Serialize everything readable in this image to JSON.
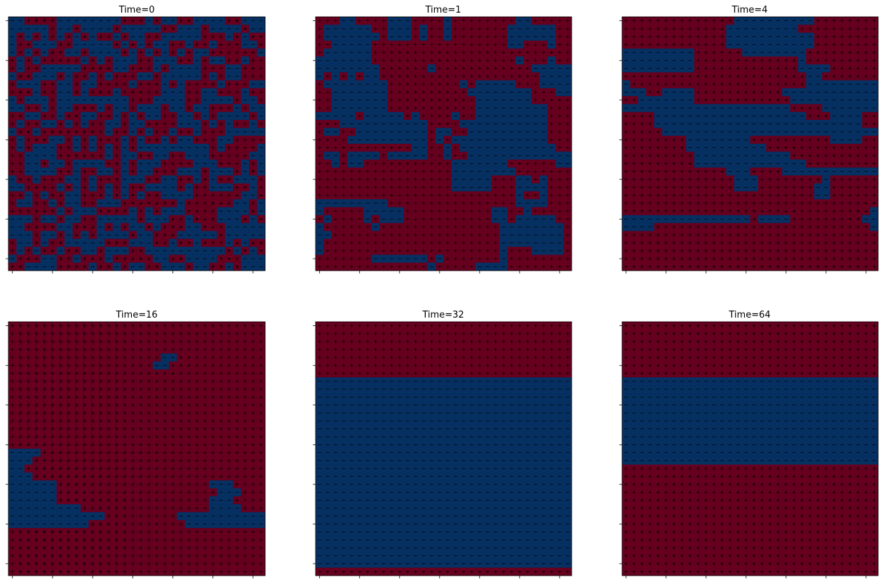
{
  "chart_data": {
    "type": "heatmap",
    "grid_size": 32,
    "colors": {
      "up": "#67001f",
      "down": "#053061"
    },
    "markers": {
      "up": "+",
      "down": "-"
    },
    "tick_labels_shown": false,
    "panels": [
      {
        "title": "Time=0",
        "rows": [
          "00111100000000111010011000011000",
          "00000100100001000001100010000100",
          "01010101010110100110000011101011",
          "01100011000001010100110110111001",
          "01010110010000101010101001111110",
          "10101111101010001100011010011011",
          "10110000011110011101000011100111",
          "01100010110101110010000010100111",
          "10001100100111101110101111011100",
          "11101100101110111110001100111011",
          "01000100000000011100001100001001",
          "00110100111010010001001001110100",
          "11001101100110101001100101000010",
          "10110010101100100111100010101101",
          "01101111111101101011011011100000",
          "10111001010111010110100111001111",
          "10100011010101010000000001011110",
          "11000011111101001100110001111100",
          "11001001000011010001111000111010",
          "11000011011001010011100010001010",
          "01101110010111000110011010110001",
          "00111101010101011000010110001101",
          "11010110011101010110000111111001",
          "10011010011000111111101111110010",
          "11111101000111101010001111000010",
          "00010010011000001000110111000101",
          "00111100111010100101110011100000",
          "00010010101000010011100000100000",
          "10010110000011100011011011101011",
          "10101101100100011000000000010101",
          "01110011011101111100110000111000",
          "11000011110110100110001001101000"
        ]
      },
      {
        "title": "Time=1",
        "rows": [
          "11100111100011110111111110011111",
          "10000001100010110111111100000011",
          "10000000100010110111111100000011",
          "11000001111111111111111100111011",
          "10000001111111111111111111111111",
          "00000001111111111111111110111011",
          "00000000111111011111111111100000",
          "01010100111111111111111111110000",
          "10000000011111111101000001110000",
          "11000000011111111110000000011100",
          "11000000011111111111000000011111",
          "11000000011111111111000000000111",
          "00000100000101111011000000000111",
          "11100000000000111100000000000111",
          "10011000000000100110000000000111",
          "11110000000000101000000000000111",
          "11111111111100110100000000000011",
          "10010000100000110110000000000000",
          "11010011111111111000000011111100",
          "11111111111111111000000001111111",
          "11111111111111111000001110010111",
          "11111111111111111000001110000111",
          "11111111111111111111111110110111",
          "00000000011111111111111110000111",
          "01111100000111111111110011011111",
          "10111101000111111111110010000011",
          "01111110111111111111111000000001",
          "00111111111111111111111000000001",
          "01111111111111111111111000000001",
          "01111111111111111111111011100001",
          "11111110000000101111111011111111",
          "11111111111111011111000011111111"
        ]
      },
      {
        "title": "Time=4",
        "rows": [
          "11111111111111000000000011111111",
          "11111111111110000000001111111111",
          "11111111111110000000000011111111",
          "11111111111110000000000011111111",
          "00000000011111100000000111111111",
          "00000000011111111111110111111111",
          "00000000011111111111110000111111",
          "11111111111111111111111001111111",
          "01111111111111111111111000000000",
          "00011000011111111111000000000000",
          "11000000011111111111100000000000",
          "00000000000000000000011110000000",
          "11110000000000000000000111000011",
          "11110000000000000000000000000011",
          "11111000000000000000000000000000",
          "11111111000000001111111111000011",
          "11111111000000000011111111111111",
          "11111111100000000000011111111111",
          "11111111100000000000000111111111",
          "11111111111110001111000000000000",
          "11111111111111000111111110111111",
          "11111111111111000111111100111111",
          "11111111111111111111111100111111",
          "11111111111111111111111111111111",
          "11111111111111111111111111111110",
          "00000000000000001000011111111100",
          "00001111111111111111111111111110",
          "11111111111111111111111111111111",
          "11111111111111111111111111111111",
          "11111111111111111111111111111111",
          "11111111111111111111111111111111",
          "11111111111111111111111111111111"
        ]
      },
      {
        "title": "Time=16",
        "rows": [
          "11111111111111111111111111111111",
          "11111111111111111111111111111111",
          "11111111111111111111111111111111",
          "11111111111111111111111111111111",
          "11111111111111111110011111111111",
          "11111111111111111100111111111111",
          "11111111111111111111111111111111",
          "11111111111111111111111111111111",
          "11111111111111111111111111111111",
          "11111111111111111111111111111111",
          "11111111111111111111111111111111",
          "11111111111111111111111111111111",
          "11111111111111111111111111111111",
          "11111111111111111111111111111111",
          "11111111111111111111111111111111",
          "11111111111111111111111111111111",
          "00001111111111111111111111111111",
          "00011111111111111111111111111111",
          "00111111111111111111111111111111",
          "00011111111111111111111111111111",
          "00000011111111111111111110001111",
          "00000011111111111111111111000111",
          "00000011111111111111111110001111",
          "00000000011111111111111110000111",
          "00000000000011111111100000000000",
          "00000000001111111111110000000000",
          "11111111111111111111111111111111",
          "11111111111111111111111111111111",
          "11111111111111111111111111111111",
          "11111111111111111111111111111111",
          "11111111111111111111111111111111",
          "11111111111111111111111111111111"
        ]
      },
      {
        "title": "Time=32",
        "rows": [
          "11111111111111111111111111111111",
          "11111111111111111111111111111111",
          "11111111111111111111111111111111",
          "11111111111111111111111111111111",
          "11111111111111111111111111111111",
          "11111111111111111111111111111111",
          "11111111111111111111111111111111",
          "00000000000000000000000000000000",
          "00000000000000000000000000000000",
          "00000000000000000000000000000000",
          "00000000000000000000000000000000",
          "00000000000000000000000000000000",
          "00000000000000000000000000000000",
          "00000000000000000000000000000000",
          "00000000000000000000000000000000",
          "00000000000000000000000000000000",
          "00000000000000000000000000000000",
          "00000000000000000000000000000000",
          "00000000000000000000000000000000",
          "00000000000000000000000000000000",
          "00000000000000000000000000000000",
          "00000000000000000000000000000000",
          "00000000000000000000000000000000",
          "00000000000000000000000000000000",
          "00000000000000000000000000000000",
          "00000000000000000000000000000000",
          "00000000000000000000000000000000",
          "00000000000000000000000000000000",
          "00000000000000000000000000000000",
          "00000000000000000000000000000000",
          "00000000000000000000000000000000",
          "11111111111111111111111111111111"
        ]
      },
      {
        "title": "Time=64",
        "rows": [
          "11111111111111111111111111111111",
          "11111111111111111111111111111111",
          "11111111111111111111111111111111",
          "11111111111111111111111111111111",
          "11111111111111111111111111111111",
          "11111111111111111111111111111111",
          "11111111111111111111111111111111",
          "00000000000000000000000000000000",
          "00000000000000000000000000000000",
          "00000000000000000000000000000000",
          "00000000000000000000000000000000",
          "00000000000000000000000000000000",
          "00000000000000000000000000000000",
          "00000000000000000000000000000000",
          "00000000000000000000000000000000",
          "00000000000000000000000000000000",
          "00000000000000000000000000000000",
          "00000000000000000000000000000000",
          "11111111111111111111111111111111",
          "11111111111111111111111111111111",
          "11111111111111111111111111111111",
          "11111111111111111111111111111111",
          "11111111111111111111111111111111",
          "11111111111111111111111111111111",
          "11111111111111111111111111111111",
          "11111111111111111111111111111111",
          "11111111111111111111111111111111",
          "11111111111111111111111111111111",
          "11111111111111111111111111111111",
          "11111111111111111111111111111111",
          "11111111111111111111111111111111",
          "11111111111111111111111111111111"
        ]
      }
    ]
  }
}
